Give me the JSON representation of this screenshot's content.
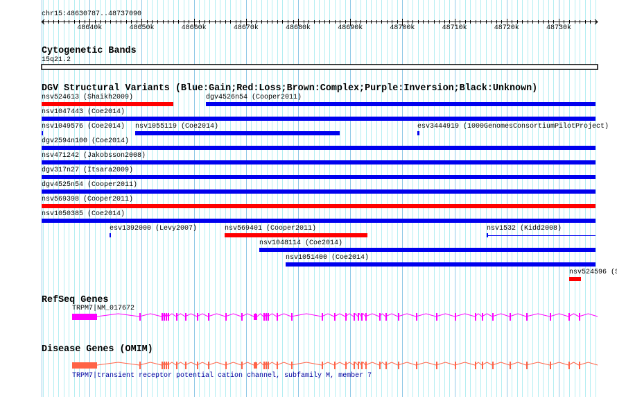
{
  "region": {
    "label": "chr15:48630787..48737090",
    "start": 48630787,
    "end": 48737090
  },
  "ruler": {
    "ticks": [
      "48640k",
      "48650k",
      "48660k",
      "48670k",
      "48680k",
      "48690k",
      "48700k",
      "48710k",
      "48720k",
      "48730k"
    ]
  },
  "cytoband": {
    "title": "Cytogenetic Bands",
    "band": "15q21.2"
  },
  "dgv": {
    "title": "DGV Structural Variants (Blue:Gain;Red:Loss;Brown:Complex;Purple:Inversion;Black:Unknown)",
    "colors": {
      "gain": "#0000ee",
      "loss": "#ff0000"
    },
    "features": [
      {
        "label": "nsv524613 (Shaikh2009)",
        "type": "loss",
        "row": 0,
        "start": 48630787,
        "end": 48656057
      },
      {
        "label": "dgv4526n54 (Cooper2011)",
        "type": "gain",
        "row": 0,
        "start": 48662308,
        "end": 48737090
      },
      {
        "label": "nsv1047443 (Coe2014)",
        "type": "gain",
        "row": 1,
        "start": 48630787,
        "end": 48737090
      },
      {
        "label": "nsv1049576 (Coe2014)",
        "type": "gain",
        "row": 2,
        "start": 48630787,
        "end": 48631053
      },
      {
        "label": "nsv1055119 (Coe2014)",
        "type": "gain",
        "row": 2,
        "start": 48648742,
        "end": 48687977
      },
      {
        "label": "esv3444919 (1000GenomesConsortiumPilotProject)",
        "type": "gain",
        "row": 2,
        "start": 48702873,
        "end": 48703272
      },
      {
        "label": "dgv2594n100 (Coe2014)",
        "type": "gain",
        "row": 3,
        "start": 48630787,
        "end": 48737090
      },
      {
        "label": "nsv471242 (Jakobsson2008)",
        "type": "gain",
        "row": 4,
        "start": 48630787,
        "end": 48737090
      },
      {
        "label": "dgv317n27 (Itsara2009)",
        "type": "gain",
        "row": 5,
        "start": 48630787,
        "end": 48737090
      },
      {
        "label": "dgv4525n54 (Cooper2011)",
        "type": "gain",
        "row": 6,
        "start": 48630787,
        "end": 48737090
      },
      {
        "label": "nsv569398 (Cooper2011)",
        "type": "loss",
        "row": 7,
        "start": 48630787,
        "end": 48737090
      },
      {
        "label": "nsv1050385 (Coe2014)",
        "type": "gain",
        "row": 8,
        "start": 48630787,
        "end": 48737090
      },
      {
        "label": "esv1392000 (Levy2007)",
        "type": "gain",
        "row": 9,
        "start": 48643821,
        "end": 48644087
      },
      {
        "label": "nsv569401 (Cooper2011)",
        "type": "loss",
        "row": 9,
        "start": 48665899,
        "end": 48693297
      },
      {
        "label": "nsv1532 (Kidd2008)",
        "type": "gain",
        "row": 9,
        "start": 48716173,
        "end": 48737090,
        "thin": true
      },
      {
        "label": "nsv1048114 (Coe2014)",
        "type": "gain",
        "row": 10,
        "start": 48672549,
        "end": 48737090
      },
      {
        "label": "nsv1051400 (Coe2014)",
        "type": "gain",
        "row": 11,
        "start": 48677603,
        "end": 48737090
      },
      {
        "label": "nsv524596 (S",
        "type": "loss",
        "row": 12,
        "start": 48732000,
        "end": 48734261
      }
    ]
  },
  "refseq": {
    "title": "RefSeq Genes",
    "gene_label": "TRPM7|NM_017672",
    "color": "#ff00ff"
  },
  "omim": {
    "title": "Disease Genes (OMIM)",
    "gene_label": "TRPM7|transient receptor potential cation channel, subfamily M, member 7",
    "color": "#ff6347"
  }
}
